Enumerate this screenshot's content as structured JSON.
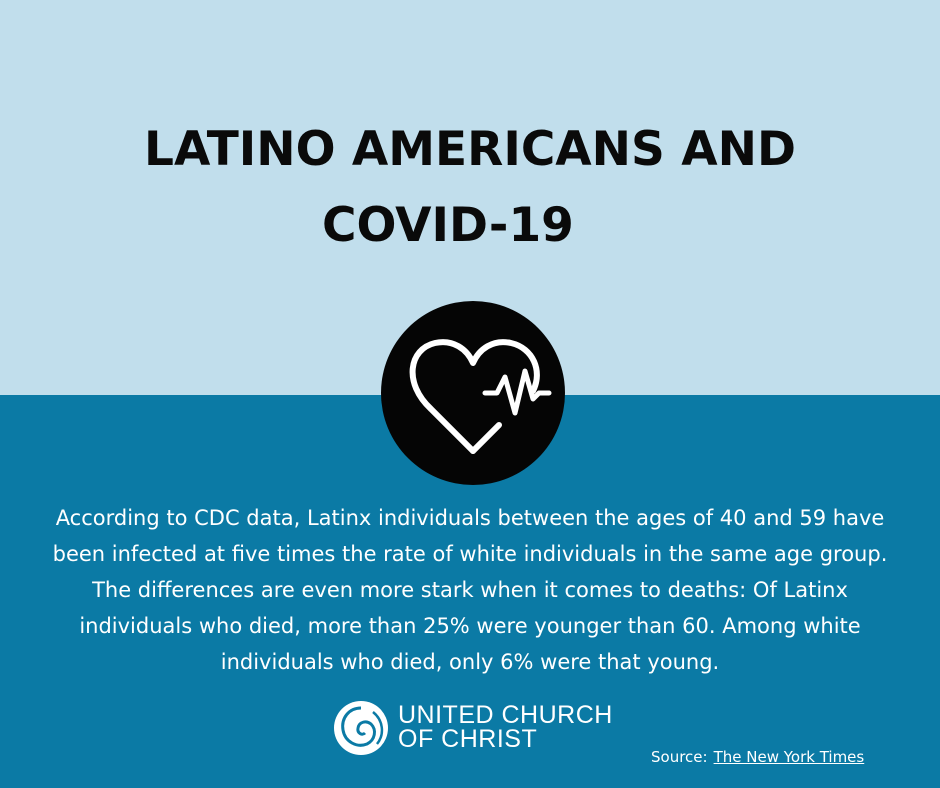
{
  "header": {
    "title_lines": [
      "LATINO AMERICANS AND",
      "COVID-19"
    ]
  },
  "body": {
    "lines": [
      "According to CDC data, Latinx individuals between the ages of 40 and 59 have",
      "been infected at five times the rate of white individuals in the same age group.",
      "The differences are even more stark when it comes to deaths: Of Latinx",
      "individuals who died, more than 25% were younger than 60. Among white",
      "individuals who died, only 6% were that young."
    ]
  },
  "logo": {
    "lines": [
      "UNITED CHURCH",
      "OF CHRIST"
    ]
  },
  "source": {
    "label": "Source:",
    "link": "The New York Times"
  }
}
